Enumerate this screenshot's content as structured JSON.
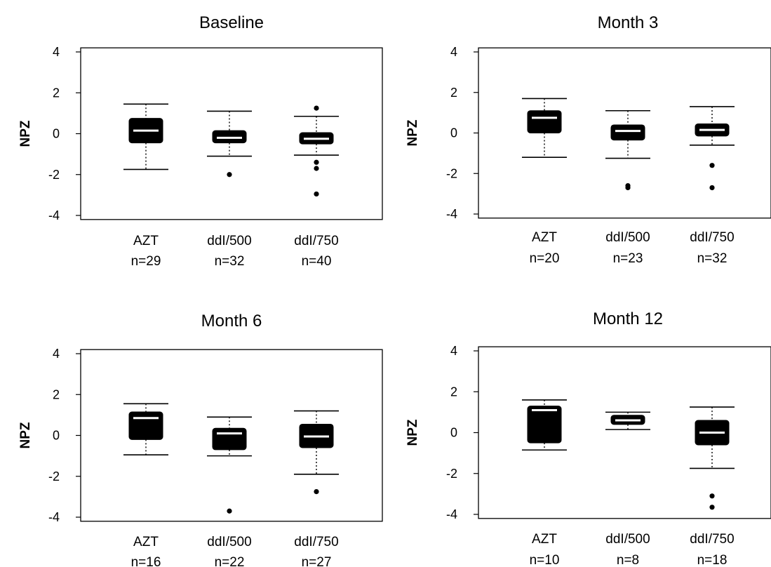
{
  "chart_data": [
    {
      "type": "boxplot",
      "title": "Baseline",
      "ylabel": "NPZ",
      "ylim": [
        -4.2,
        4.2
      ],
      "yticks": [
        "4",
        "2",
        "0",
        "-2",
        "-4"
      ],
      "ytick_values": [
        4,
        2,
        0,
        -2,
        -4
      ],
      "groups": [
        {
          "name": "AZT",
          "n_label": "n=29",
          "whisker_low": -1.75,
          "q1": -0.45,
          "median": 0.15,
          "q3": 0.75,
          "whisker_high": 1.45,
          "outliers": []
        },
        {
          "name": "ddI/500",
          "n_label": "n=32",
          "whisker_low": -1.1,
          "q1": -0.45,
          "median": -0.2,
          "q3": 0.15,
          "whisker_high": 1.1,
          "outliers": [
            -2.0
          ]
        },
        {
          "name": "ddI/750",
          "n_label": "n=40",
          "whisker_low": -1.05,
          "q1": -0.5,
          "median": -0.25,
          "q3": 0.05,
          "whisker_high": 0.85,
          "outliers": [
            1.25,
            -1.4,
            -1.7,
            -2.95
          ]
        }
      ]
    },
    {
      "type": "boxplot",
      "title": "Month 3",
      "ylabel": "NPZ",
      "ylim": [
        -4.2,
        4.2
      ],
      "yticks": [
        "4",
        "2",
        "0",
        "-2",
        "-4"
      ],
      "ytick_values": [
        4,
        2,
        0,
        -2,
        -4
      ],
      "groups": [
        {
          "name": "AZT",
          "n_label": "n=20",
          "whisker_low": -1.2,
          "q1": 0.0,
          "median": 0.75,
          "q3": 1.1,
          "whisker_high": 1.7,
          "outliers": []
        },
        {
          "name": "ddI/500",
          "n_label": "n=23",
          "whisker_low": -1.25,
          "q1": -0.35,
          "median": 0.1,
          "q3": 0.4,
          "whisker_high": 1.1,
          "outliers": [
            -2.6,
            -2.7
          ]
        },
        {
          "name": "ddI/750",
          "n_label": "n=32",
          "whisker_low": -0.6,
          "q1": -0.15,
          "median": 0.15,
          "q3": 0.45,
          "whisker_high": 1.3,
          "outliers": [
            -1.6,
            -2.7
          ]
        }
      ]
    },
    {
      "type": "boxplot",
      "title": "Month 6",
      "ylabel": "NPZ",
      "ylim": [
        -4.2,
        4.2
      ],
      "yticks": [
        "4",
        "2",
        "0",
        "-2",
        "-4"
      ],
      "ytick_values": [
        4,
        2,
        0,
        -2,
        -4
      ],
      "groups": [
        {
          "name": "AZT",
          "n_label": "n=16",
          "whisker_low": -0.95,
          "q1": -0.2,
          "median": 0.85,
          "q3": 1.15,
          "whisker_high": 1.55,
          "outliers": []
        },
        {
          "name": "ddI/500",
          "n_label": "n=22",
          "whisker_low": -1.0,
          "q1": -0.7,
          "median": 0.1,
          "q3": 0.35,
          "whisker_high": 0.9,
          "outliers": [
            -3.7
          ]
        },
        {
          "name": "ddI/750",
          "n_label": "n=27",
          "whisker_low": -1.9,
          "q1": -0.6,
          "median": -0.05,
          "q3": 0.55,
          "whisker_high": 1.2,
          "outliers": [
            -2.75
          ]
        }
      ]
    },
    {
      "type": "boxplot",
      "title": "Month 12",
      "ylabel": "NPZ",
      "ylim": [
        -4.2,
        4.2
      ],
      "yticks": [
        "4",
        "2",
        "0",
        "-2",
        "-4"
      ],
      "ytick_values": [
        4,
        2,
        0,
        -2,
        -4
      ],
      "groups": [
        {
          "name": "AZT",
          "n_label": "n=10",
          "whisker_low": -0.85,
          "q1": -0.5,
          "median": 1.1,
          "q3": 1.3,
          "whisker_high": 1.6,
          "outliers": []
        },
        {
          "name": "ddI/500",
          "n_label": "n=8",
          "whisker_low": 0.15,
          "q1": 0.4,
          "median": 0.6,
          "q3": 0.85,
          "whisker_high": 1.0,
          "outliers": []
        },
        {
          "name": "ddI/750",
          "n_label": "n=18",
          "whisker_low": -1.75,
          "q1": -0.6,
          "median": 0.0,
          "q3": 0.6,
          "whisker_high": 1.25,
          "outliers": [
            -3.1,
            -3.65
          ]
        }
      ]
    }
  ]
}
